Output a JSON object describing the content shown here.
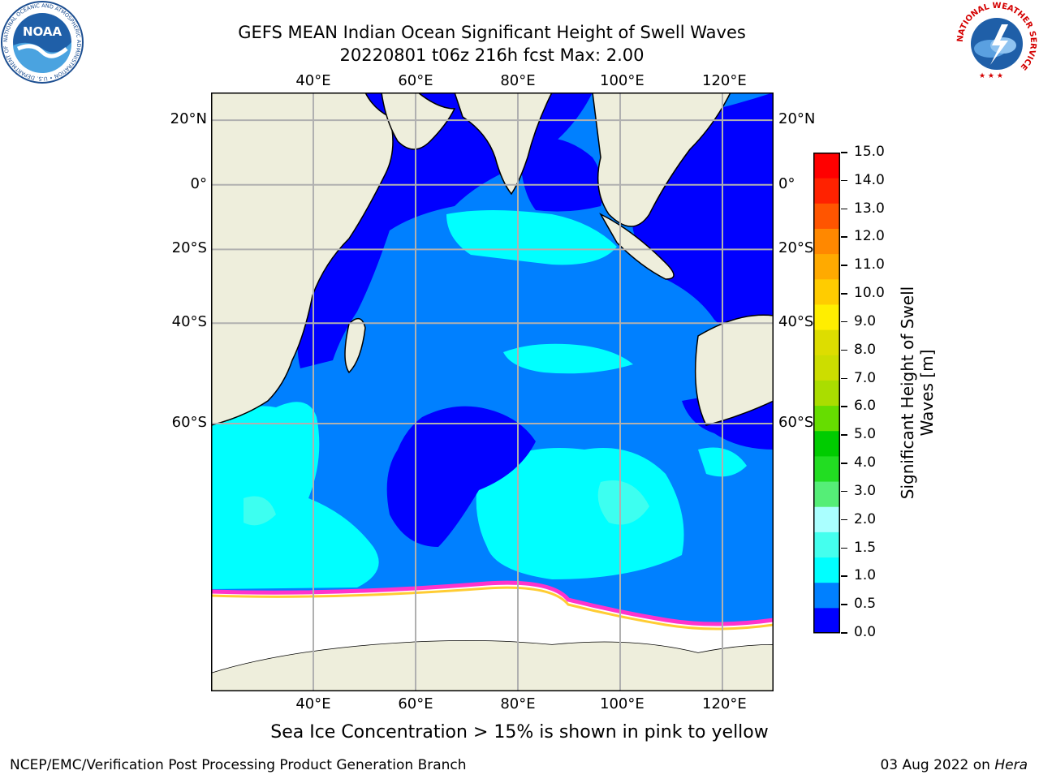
{
  "header": {
    "title_line1": "GEFS MEAN Indian Ocean Significant Height of Swell Waves",
    "title_line2": "20220801 t06z 216h fcst   Max: 2.00"
  },
  "logos": {
    "noaa_text": "NOAA",
    "noaa_ring_text": "NATIONAL OCEANIC AND ATMOSPHERIC ADMINISTRATION • U.S. DEPARTMENT OF COMMERCE",
    "nws_ring_text": "NATIONAL WEATHER SERVICE"
  },
  "map": {
    "lon_labels": [
      "40°E",
      "60°E",
      "80°E",
      "100°E",
      "120°E"
    ],
    "lat_labels": [
      "20°N",
      "0°",
      "20°S",
      "40°S",
      "60°S"
    ],
    "lon_range": [
      20,
      130
    ],
    "lat_range": [
      -83,
      28
    ],
    "colors": {
      "land": "#eeeedc",
      "ocean_deep": "#0000ff",
      "ocean_mid": "#0080ff",
      "ocean_light": "#00ffff",
      "ice": "#ffffff",
      "ice_edge_pink": "#ff33cc",
      "ice_edge_yellow": "#ffcc33",
      "grid": "#b0b0b0"
    }
  },
  "colorbar": {
    "label": "Significant Height of Swell Waves [m]",
    "ticks": [
      "15.0",
      "14.0",
      "13.0",
      "12.0",
      "11.0",
      "10.0",
      "9.0",
      "8.0",
      "7.0",
      "6.0",
      "5.0",
      "4.0",
      "3.0",
      "2.0",
      "1.5",
      "1.0",
      "0.5",
      "0.0"
    ],
    "colors_bottom_to_top": [
      "#0000ff",
      "#0080ff",
      "#00ffff",
      "#44ffee",
      "#aaffff",
      "#55ee77",
      "#22dd22",
      "#00cc00",
      "#66dd00",
      "#aadd00",
      "#ccdd00",
      "#dddd00",
      "#ffee00",
      "#ffcc00",
      "#ffaa00",
      "#ff8800",
      "#ff5500",
      "#ff2200",
      "#ff0000"
    ]
  },
  "footer": {
    "note": "Sea Ice Concentration > 15% is shown in pink to yellow",
    "left": "NCEP/EMC/Verification Post Processing Product Generation Branch",
    "right_prefix": "03 Aug 2022 on ",
    "right_system": "Hera"
  }
}
